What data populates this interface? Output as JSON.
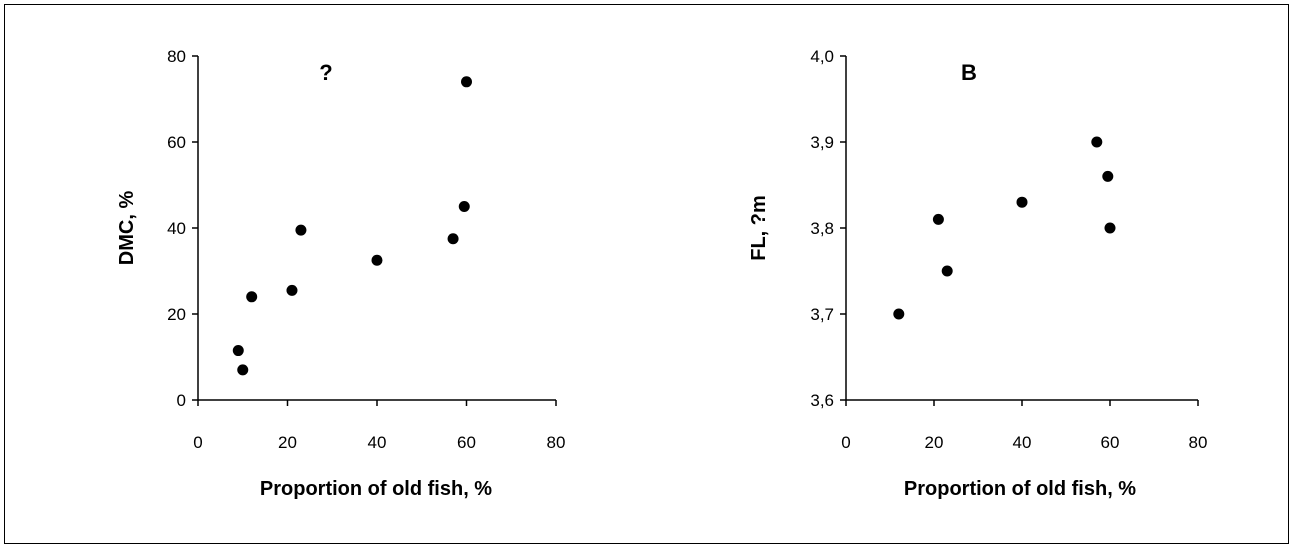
{
  "chart_data": [
    {
      "type": "scatter",
      "panel_label": "?",
      "xlabel": "Proportion of old fish, %",
      "ylabel": "DMC, %",
      "xlim": [
        0,
        80
      ],
      "ylim": [
        0,
        80
      ],
      "xticks": [
        0,
        20,
        40,
        60,
        80
      ],
      "yticks": [
        0,
        20,
        40,
        60,
        80
      ],
      "ytick_labels": [
        "0",
        "20",
        "40",
        "60",
        "80"
      ],
      "grid": false,
      "marker_color": "#000000",
      "points": [
        {
          "x": 9,
          "y": 11.5
        },
        {
          "x": 10,
          "y": 7
        },
        {
          "x": 12,
          "y": 24
        },
        {
          "x": 21,
          "y": 25.5
        },
        {
          "x": 23,
          "y": 39.5
        },
        {
          "x": 40,
          "y": 32.5
        },
        {
          "x": 57,
          "y": 37.5
        },
        {
          "x": 59.5,
          "y": 45
        },
        {
          "x": 60,
          "y": 74
        }
      ]
    },
    {
      "type": "scatter",
      "panel_label": "B",
      "xlabel": "Proportion of old fish, %",
      "ylabel": "FL, ?m",
      "xlim": [
        0,
        80
      ],
      "ylim": [
        3.6,
        4.0
      ],
      "xticks": [
        0,
        20,
        40,
        60,
        80
      ],
      "yticks": [
        3.6,
        3.7,
        3.8,
        3.9,
        4.0
      ],
      "ytick_labels": [
        "3,6",
        "3,7",
        "3,8",
        "3,9",
        "4,0"
      ],
      "grid": false,
      "marker_color": "#000000",
      "points": [
        {
          "x": 12,
          "y": 3.7
        },
        {
          "x": 21,
          "y": 3.81
        },
        {
          "x": 23,
          "y": 3.75
        },
        {
          "x": 40,
          "y": 3.83
        },
        {
          "x": 57,
          "y": 3.9
        },
        {
          "x": 59.5,
          "y": 3.86
        },
        {
          "x": 60,
          "y": 3.8
        }
      ]
    }
  ]
}
